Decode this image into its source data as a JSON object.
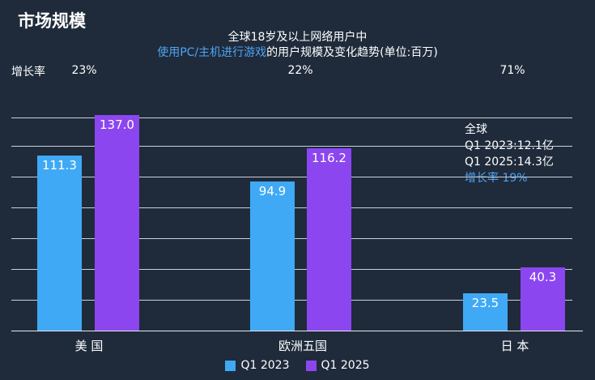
{
  "page_title": "市场规模",
  "subtitle_line1": "全球18岁及以上网络用户中",
  "subtitle_highlight": "使用PC/主机进行游戏",
  "subtitle_rest": "的用户规模及变化趋势(单位:百万)",
  "growth_label": "增长率",
  "summary": {
    "line1": "全球",
    "line2": "Q1 2023:12.1亿",
    "line3": "Q1 2025:14.3亿",
    "line4": "增长率 19%"
  },
  "colors": {
    "background": "#1f2b3b",
    "series_2023": "#3fa9f5",
    "series_2025": "#8c46f0",
    "accent_text": "#4ea3f2",
    "gridline": "#c9d0d8"
  },
  "chart_data": {
    "type": "bar",
    "categories": [
      "美 国",
      "欧洲五国",
      "日 本"
    ],
    "series": [
      {
        "name": "Q1 2023",
        "values": [
          111.3,
          94.9,
          23.5
        ],
        "labels": [
          "111.3",
          "94.9",
          "23.5"
        ]
      },
      {
        "name": "Q1 2025",
        "values": [
          137.0,
          116.2,
          40.3
        ],
        "labels": [
          "137.0",
          "116.2",
          "40.3"
        ]
      }
    ],
    "growth_rates": [
      "23%",
      "22%",
      "71%"
    ],
    "ylim": [
      0,
      140
    ],
    "grid": true,
    "legend": "bottom-center"
  }
}
